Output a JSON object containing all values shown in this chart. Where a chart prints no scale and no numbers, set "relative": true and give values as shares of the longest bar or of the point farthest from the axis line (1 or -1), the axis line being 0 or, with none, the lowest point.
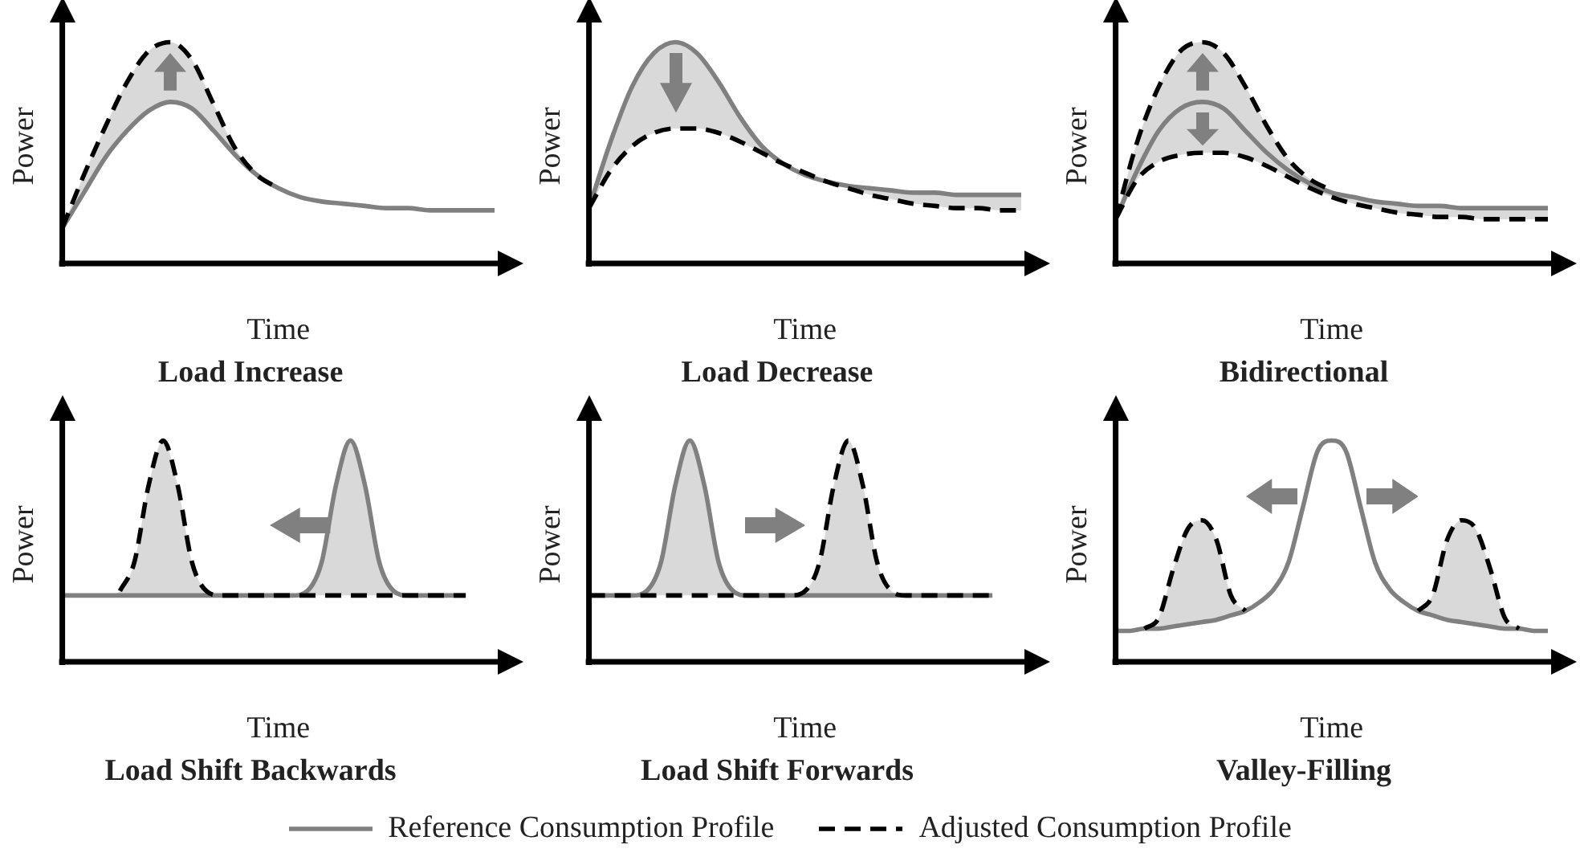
{
  "chart_data": [
    {
      "type": "line",
      "title": "Load Increase",
      "xlabel": "Time",
      "ylabel": "Power",
      "relative": true,
      "legend": "bottom",
      "line_style": "solid",
      "categories": [
        null,
        null,
        null,
        null,
        null,
        null,
        null,
        null,
        null,
        null,
        null,
        null,
        null,
        null,
        null,
        null,
        null,
        null,
        null,
        null,
        null
      ],
      "series": [
        {
          "name": "Reference Consumption Profile",
          "color": "#808080",
          "values": [
            0.16,
            0.32,
            0.48,
            0.6,
            0.69,
            0.73,
            0.7,
            0.6,
            0.49,
            0.4,
            0.34,
            0.3,
            0.28,
            0.27,
            0.26,
            0.25,
            0.25,
            0.24,
            0.24,
            0.24,
            0.24
          ],
          "lower": [
            0.16,
            0.32,
            0.48,
            0.6,
            0.69,
            0.73,
            0.7,
            0.6,
            0.49,
            0.4,
            0.34,
            null,
            null,
            null,
            null,
            null,
            null,
            null,
            null,
            null,
            null
          ],
          "upper": [
            0.16,
            0.4,
            0.62,
            0.82,
            0.96,
            1.0,
            0.92,
            0.72,
            0.52,
            0.4,
            0.34,
            null,
            null,
            null,
            null,
            null,
            null,
            null,
            null,
            null,
            null
          ]
        },
        {
          "name": "Adjusted Consumption Profile",
          "color": "#000000",
          "line_style": "dashed",
          "values": [
            0.16,
            0.4,
            0.62,
            0.82,
            0.96,
            1.0,
            0.92,
            0.72,
            0.52,
            0.4,
            0.34,
            null,
            null,
            null,
            null,
            null,
            null,
            null,
            null,
            null,
            null
          ]
        }
      ]
    },
    {
      "type": "line",
      "title": "Load Decrease",
      "xlabel": "Time",
      "ylabel": "Power",
      "relative": true,
      "legend": "bottom",
      "line_style": "solid",
      "categories": [
        null,
        null,
        null,
        null,
        null,
        null,
        null,
        null,
        null,
        null,
        null,
        null,
        null,
        null,
        null,
        null,
        null,
        null,
        null,
        null,
        null
      ],
      "series": [
        {
          "name": "Reference Consumption Profile",
          "color": "#808080",
          "values": [
            0.25,
            0.55,
            0.8,
            0.95,
            1.0,
            0.95,
            0.82,
            0.66,
            0.53,
            0.45,
            0.4,
            0.37,
            0.35,
            0.34,
            0.33,
            0.32,
            0.32,
            0.31,
            0.31,
            0.31,
            0.31
          ],
          "lower": [
            0.25,
            0.42,
            0.53,
            0.59,
            0.61,
            0.61,
            0.59,
            0.55,
            0.5,
            0.45,
            0.4,
            0.37,
            0.34,
            0.31,
            0.29,
            0.27,
            0.26,
            0.25,
            0.25,
            0.24,
            0.24
          ],
          "upper": [
            0.25,
            0.55,
            0.8,
            0.95,
            1.0,
            0.95,
            0.82,
            0.66,
            0.53,
            0.45,
            0.41,
            0.37,
            0.35,
            0.34,
            0.33,
            0.32,
            0.32,
            0.31,
            0.31,
            0.31,
            0.31
          ]
        },
        {
          "name": "Adjusted Consumption Profile",
          "color": "#000000",
          "line_style": "dashed",
          "values": [
            0.25,
            0.42,
            0.53,
            0.59,
            0.61,
            0.61,
            0.59,
            0.55,
            0.5,
            0.45,
            0.41,
            0.37,
            0.34,
            0.31,
            0.29,
            0.27,
            0.26,
            0.25,
            0.25,
            0.24,
            0.24
          ]
        }
      ]
    },
    {
      "type": "line",
      "title": "Bidirectional",
      "xlabel": "Time",
      "ylabel": "Power",
      "relative": true,
      "legend": "bottom",
      "line_style": "solid",
      "categories": [
        null,
        null,
        null,
        null,
        null,
        null,
        null,
        null,
        null,
        null,
        null,
        null,
        null,
        null,
        null,
        null,
        null,
        null,
        null,
        null,
        null
      ],
      "series": [
        {
          "name": "Reference Consumption Profile",
          "color": "#808080",
          "values": [
            0.2,
            0.42,
            0.6,
            0.7,
            0.73,
            0.7,
            0.6,
            0.5,
            0.42,
            0.36,
            0.32,
            0.3,
            0.28,
            0.27,
            0.26,
            0.26,
            0.25,
            0.25,
            0.25,
            0.25,
            0.25
          ],
          "lower": [
            0.2,
            0.38,
            0.46,
            0.49,
            0.5,
            0.5,
            0.48,
            0.44,
            0.39,
            0.34,
            0.3,
            0.27,
            0.25,
            0.23,
            0.22,
            0.21,
            0.21,
            0.2,
            0.2,
            0.2,
            0.2
          ],
          "upper": [
            0.2,
            0.55,
            0.8,
            0.96,
            1.0,
            0.95,
            0.8,
            0.62,
            0.47,
            0.38,
            0.33,
            0.3,
            0.28,
            0.27,
            0.26,
            0.26,
            0.25,
            0.25,
            0.25,
            0.25,
            0.25
          ]
        },
        {
          "name": "Adjusted Consumption Profile",
          "color": "#000000",
          "line_style": "dashed",
          "values": [
            0.2,
            0.55,
            0.8,
            0.96,
            1.0,
            0.95,
            0.8,
            0.62,
            0.47,
            0.38,
            0.33,
            null,
            null,
            null,
            null,
            null,
            null,
            null,
            null,
            null,
            null
          ]
        },
        {
          "name": "Adjusted Consumption Profile",
          "color": "#000000",
          "line_style": "dashed",
          "values": [
            0.2,
            0.38,
            0.46,
            0.49,
            0.5,
            0.5,
            0.48,
            0.44,
            0.39,
            0.34,
            0.3,
            0.27,
            0.25,
            0.23,
            0.22,
            0.21,
            0.21,
            0.2,
            0.2,
            0.2,
            0.2
          ]
        }
      ]
    },
    {
      "type": "line",
      "title": "Load Shift Backwards",
      "xlabel": "Time",
      "ylabel": "Power",
      "relative": true,
      "legend": "bottom",
      "line_style": "solid",
      "categories": [
        null,
        null,
        null,
        null,
        null,
        null,
        null,
        null,
        null,
        null,
        null,
        null,
        null,
        null,
        null,
        null,
        null,
        null,
        null,
        null,
        null,
        null,
        null,
        null,
        null,
        null,
        null,
        null,
        null,
        null,
        null
      ],
      "series": [
        {
          "name": "Reference Consumption Profile",
          "color": "#808080",
          "values": [
            0.3,
            0.3,
            0.3,
            0.3,
            0.3,
            0.3,
            0.3,
            0.3,
            0.3,
            0.3,
            0.3,
            0.3,
            0.3,
            0.3,
            0.3,
            0.3,
            0.3,
            0.32,
            0.45,
            0.8,
            1.0,
            0.8,
            0.45,
            0.32,
            0.3,
            0.3,
            0.3,
            0.3,
            0.3,
            null,
            null
          ],
          "lower": [
            0.3,
            0.3,
            0.3,
            0.3,
            0.3,
            0.3,
            0.3,
            0.3,
            0.3,
            0.3,
            0.3,
            0.3,
            0.3,
            0.3,
            0.3,
            0.3,
            0.3,
            0.3,
            0.3,
            0.3,
            0.3,
            0.3,
            0.3,
            0.3,
            0.3,
            0.3,
            0.3,
            0.3,
            0.3,
            null,
            null
          ],
          "upper": [
            0.3,
            0.3,
            0.3,
            0.3,
            0.32,
            0.45,
            0.8,
            1.0,
            0.8,
            0.45,
            0.32,
            0.3,
            0.3,
            0.3,
            0.3,
            0.3,
            0.3,
            0.32,
            0.45,
            0.8,
            1.0,
            0.8,
            0.45,
            0.32,
            0.3,
            0.3,
            0.3,
            0.3,
            0.3,
            null,
            null
          ]
        },
        {
          "name": "Adjusted Consumption Profile",
          "color": "#000000",
          "line_style": "dashed",
          "values": [
            null,
            null,
            null,
            null,
            0.32,
            0.45,
            0.8,
            1.0,
            0.8,
            0.45,
            0.32,
            0.3,
            0.3,
            0.3,
            0.3,
            0.3,
            0.3,
            0.3,
            0.3,
            0.3,
            0.3,
            0.3,
            0.3,
            0.3,
            0.3,
            0.3,
            0.3,
            0.3,
            0.3,
            null,
            null
          ]
        }
      ]
    },
    {
      "type": "line",
      "title": "Load Shift Forwards",
      "xlabel": "Time",
      "ylabel": "Power",
      "relative": true,
      "legend": "bottom",
      "line_style": "solid",
      "categories": [
        null,
        null,
        null,
        null,
        null,
        null,
        null,
        null,
        null,
        null,
        null,
        null,
        null,
        null,
        null,
        null,
        null,
        null,
        null,
        null,
        null,
        null,
        null,
        null,
        null,
        null,
        null,
        null,
        null,
        null,
        null
      ],
      "series": [
        {
          "name": "Reference Consumption Profile",
          "color": "#808080",
          "values": [
            0.3,
            0.3,
            0.3,
            0.3,
            0.32,
            0.45,
            0.8,
            1.0,
            0.8,
            0.45,
            0.32,
            0.3,
            0.3,
            0.3,
            0.3,
            0.3,
            0.3,
            0.3,
            0.3,
            0.3,
            0.3,
            0.3,
            0.3,
            0.3,
            0.3,
            0.3,
            0.3,
            0.3,
            0.3,
            null,
            null
          ],
          "lower": [
            0.3,
            0.3,
            0.3,
            0.3,
            0.3,
            0.3,
            0.3,
            0.3,
            0.3,
            0.3,
            0.3,
            0.3,
            0.3,
            0.3,
            0.3,
            0.3,
            0.3,
            0.3,
            0.3,
            0.3,
            0.3,
            0.3,
            0.3,
            0.3,
            0.3,
            0.3,
            0.3,
            0.3,
            0.3,
            null,
            null
          ],
          "upper": [
            0.3,
            0.3,
            0.3,
            0.3,
            0.32,
            0.45,
            0.8,
            1.0,
            0.8,
            0.45,
            0.32,
            0.3,
            0.3,
            0.3,
            0.3,
            0.32,
            0.45,
            0.8,
            1.0,
            0.8,
            0.45,
            0.32,
            0.3,
            0.3,
            0.3,
            0.3,
            0.3,
            0.3,
            0.3,
            null,
            null
          ]
        },
        {
          "name": "Adjusted Consumption Profile",
          "color": "#000000",
          "line_style": "dashed",
          "values": [
            0.3,
            0.3,
            0.3,
            0.3,
            0.3,
            0.3,
            0.3,
            0.3,
            0.3,
            0.3,
            0.3,
            0.3,
            0.3,
            0.3,
            0.3,
            0.32,
            0.45,
            0.8,
            1.0,
            0.8,
            0.45,
            0.32,
            0.3,
            0.3,
            0.3,
            0.3,
            0.3,
            0.3,
            0.3,
            null,
            null
          ]
        }
      ]
    },
    {
      "type": "line",
      "title": "Valley-Filling",
      "xlabel": "Time",
      "ylabel": "Power",
      "relative": true,
      "legend": "bottom",
      "line_style": "solid",
      "categories": [
        null,
        null,
        null,
        null,
        null,
        null,
        null,
        null,
        null,
        null,
        null,
        null,
        null,
        null,
        null,
        null,
        null,
        null,
        null,
        null,
        null,
        null,
        null,
        null,
        null,
        null,
        null,
        null,
        null,
        null,
        null
      ],
      "series": [
        {
          "name": "Reference Consumption Profile",
          "color": "#808080",
          "values": [
            0.14,
            0.14,
            0.15,
            0.15,
            0.16,
            0.17,
            0.18,
            0.19,
            0.21,
            0.23,
            0.27,
            0.33,
            0.45,
            0.7,
            0.95,
            1.0,
            0.95,
            0.7,
            0.45,
            0.33,
            0.27,
            0.23,
            0.21,
            0.19,
            0.18,
            0.17,
            0.16,
            0.15,
            0.15,
            0.14,
            0.14
          ],
          "lower": [
            null,
            null,
            0.15,
            0.15,
            0.16,
            0.17,
            0.18,
            0.19,
            0.21,
            0.23,
            null,
            null,
            null,
            null,
            null,
            null,
            null,
            null,
            null,
            null,
            null,
            0.23,
            0.21,
            0.19,
            0.18,
            0.17,
            0.16,
            0.15,
            0.15,
            null,
            null
          ],
          "upper": [
            null,
            null,
            0.15,
            0.2,
            0.42,
            0.6,
            0.64,
            0.55,
            0.3,
            0.23,
            null,
            null,
            null,
            null,
            null,
            null,
            null,
            null,
            null,
            null,
            null,
            0.23,
            0.3,
            0.55,
            0.64,
            0.6,
            0.42,
            0.2,
            0.15,
            null,
            null
          ]
        },
        {
          "name": "Adjusted Consumption Profile",
          "color": "#000000",
          "line_style": "dashed",
          "values": [
            null,
            null,
            0.15,
            0.2,
            0.42,
            0.6,
            0.64,
            0.55,
            0.3,
            0.23,
            null,
            null,
            null,
            null,
            null,
            null,
            null,
            null,
            null,
            null,
            null,
            0.23,
            0.3,
            0.55,
            0.64,
            0.6,
            0.42,
            0.2,
            0.15,
            null,
            null
          ]
        }
      ]
    }
  ]
}
